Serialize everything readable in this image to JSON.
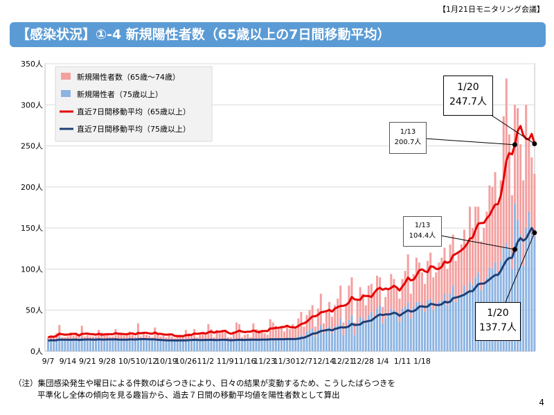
{
  "header": {
    "meeting": "【1月21日モニタリング会議】",
    "title": "【感染状況】①-4 新規陽性者数（65歳以上の7日間移動平均）"
  },
  "footnote": {
    "line1": "（注）集団感染発生や曜日による件数のばらつきにより、日々の結果が変動するため、こうしたばらつきを",
    "line2": "平準化し全体の傾向を見る趣旨から、過去７日間の移動平均値を陽性者数として算出"
  },
  "page_number": "4",
  "callouts": {
    "c1": {
      "date": "1/13",
      "value": "200.7人"
    },
    "c2": {
      "date": "1/20",
      "value": "247.7人"
    },
    "c3": {
      "date": "1/13",
      "value": "104.4人"
    },
    "c4": {
      "date": "1/20",
      "value": "137.7人"
    }
  },
  "chart_data": {
    "type": "bar",
    "start_date": "9/7",
    "xlabels": [
      "9/7",
      "9/14",
      "9/21",
      "9/28",
      "10/5",
      "10/12",
      "10/19",
      "10/26",
      "11/2",
      "11/9",
      "11/16",
      "11/23",
      "11/30",
      "12/7",
      "12/14",
      "12/21",
      "12/28",
      "1/4",
      "1/11",
      "1/18"
    ],
    "yticks": [
      "0人",
      "50人",
      "100人",
      "150人",
      "200人",
      "250人",
      "300人",
      "350人"
    ],
    "ylim": [
      0,
      350
    ],
    "colors": {
      "age65_74": "#f4a0a0",
      "age75plus": "#8db4e2",
      "avg65": "#e60000",
      "avg75": "#1f3f77"
    },
    "legend": [
      {
        "label": "新規陽性者数（65歳～74歳）",
        "kind": "bar",
        "color": "#f4a0a0"
      },
      {
        "label": "新規陽性者（75歳以上）",
        "kind": "bar",
        "color": "#8db4e2"
      },
      {
        "label": "直近7日間移動平均（65歳以上）",
        "kind": "line",
        "color": "#e60000"
      },
      {
        "label": "直近7日間移動平均（75歳以上）",
        "kind": "line",
        "color": "#1f3f77"
      }
    ],
    "series": [
      {
        "name": "新規陽性者数（65歳～74歳）",
        "values": [
          4,
          5,
          4,
          8,
          15,
          3,
          4,
          5,
          9,
          5,
          7,
          5,
          14,
          4,
          6,
          5,
          4,
          4,
          10,
          8,
          7,
          6,
          5,
          4,
          12,
          8,
          7,
          5,
          5,
          9,
          6,
          4,
          17,
          4,
          8,
          6,
          5,
          4,
          15,
          8,
          5,
          6,
          4,
          8,
          5,
          3,
          6,
          5,
          4,
          13,
          7,
          6,
          12,
          4,
          10,
          8,
          6,
          18,
          12,
          4,
          13,
          8,
          12,
          10,
          4,
          4,
          10,
          20,
          18,
          4,
          6,
          7,
          4,
          19,
          12,
          12,
          11,
          8,
          6,
          24,
          20,
          16,
          12,
          16,
          10,
          16,
          12,
          18,
          14,
          22,
          28,
          12,
          20,
          24,
          28,
          12,
          26,
          38,
          12,
          22,
          30,
          20,
          26,
          32,
          40,
          15,
          28,
          42,
          46,
          15,
          28,
          36,
          30,
          22,
          36,
          34,
          30,
          40,
          34,
          20,
          26,
          30,
          42,
          38,
          32,
          28,
          36,
          44,
          58,
          30,
          40,
          54,
          48,
          40,
          34,
          48,
          56,
          40,
          42,
          48,
          52,
          56,
          44,
          60,
          62,
          50,
          56,
          60,
          68,
          60,
          92,
          70,
          86,
          80,
          60,
          70,
          80,
          100,
          100,
          110,
          84,
          98,
          160,
          200,
          140,
          90,
          120,
          136,
          110,
          104,
          150,
          90,
          92,
          76
        ]
      },
      {
        "name": "新規陽性者（75歳以上）",
        "values": [
          13,
          14,
          13,
          14,
          17,
          14,
          13,
          13,
          14,
          14,
          15,
          13,
          17,
          14,
          14,
          13,
          14,
          14,
          16,
          15,
          14,
          15,
          13,
          14,
          15,
          14,
          14,
          14,
          15,
          15,
          14,
          14,
          17,
          14,
          15,
          14,
          14,
          13,
          14,
          14,
          13,
          13,
          13,
          13,
          13,
          13,
          14,
          14,
          13,
          13,
          15,
          14,
          15,
          13,
          13,
          13,
          14,
          15,
          15,
          13,
          13,
          14,
          14,
          14,
          13,
          13,
          14,
          15,
          15,
          13,
          14,
          14,
          13,
          15,
          15,
          14,
          15,
          14,
          14,
          15,
          15,
          15,
          15,
          15,
          14,
          15,
          15,
          15,
          15,
          18,
          20,
          18,
          24,
          26,
          28,
          18,
          26,
          32,
          22,
          28,
          30,
          22,
          30,
          32,
          40,
          20,
          30,
          38,
          44,
          20,
          34,
          42,
          40,
          34,
          44,
          48,
          40,
          52,
          56,
          34,
          40,
          44,
          52,
          50,
          46,
          36,
          52,
          54,
          60,
          40,
          54,
          60,
          60,
          56,
          48,
          62,
          64,
          50,
          54,
          60,
          62,
          70,
          56,
          70,
          80,
          60,
          66,
          70,
          80,
          72,
          84,
          80,
          90,
          96,
          74,
          80,
          90,
          102,
          100,
          108,
          96,
          110,
          126,
          132,
          124,
          100,
          180,
          160,
          142,
          104,
          150,
          170,
          144,
          140
        ]
      }
    ]
  }
}
